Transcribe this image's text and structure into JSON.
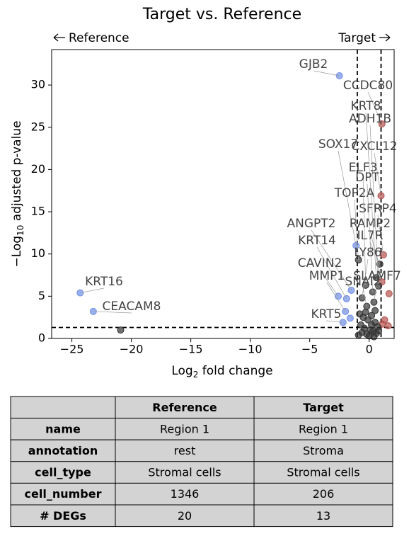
{
  "chart_data": {
    "type": "scatter",
    "title": "Target vs. Reference",
    "direction_labels": [
      "Reference",
      "Target"
    ],
    "xlabel": [
      "Log",
      "2",
      " fold change"
    ],
    "ylabel": [
      "−Log",
      "10",
      " adjusted p-value"
    ],
    "xlim": [
      -26.7,
      2.1
    ],
    "ylim": [
      0,
      34.2
    ],
    "xticks": [
      {
        "value": -25,
        "label": "−25"
      },
      {
        "value": -20,
        "label": "−20"
      },
      {
        "value": -15,
        "label": "−15"
      },
      {
        "value": -10,
        "label": "−10"
      },
      {
        "value": -5,
        "label": "−5"
      },
      0
    ],
    "yticks": [
      0,
      5,
      10,
      15,
      20,
      25,
      30
    ],
    "thresholds": {
      "x": [
        -1,
        1
      ],
      "y": 1.3
    },
    "series": [
      {
        "color": "#6f8fe8",
        "x": [
          -24.3,
          -23.2,
          -2.5,
          -1.1,
          -1.5,
          -1.9,
          -2.6,
          -2.0,
          -2.2,
          -1.6
        ],
        "values": [
          5.4,
          3.2,
          31.1,
          11.0,
          5.7,
          4.7,
          5.0,
          3.2,
          1.9,
          2.4
        ],
        "labels": [
          "KRT16",
          "CEACAM8",
          "GJB2",
          "SOX17",
          "ANGPT2",
          "KRT14",
          "CAVIN2",
          "MMP1",
          "KRT5",
          null
        ]
      },
      {
        "color": "#b5524f",
        "x": [
          1.07,
          1.0,
          1.2,
          1.07,
          1.67,
          1.3,
          1.6,
          1.1
        ],
        "values": [
          25.4,
          16.9,
          9.9,
          6.7,
          5.3,
          2.2,
          1.5,
          1.7
        ],
        "labels": [
          "CCDC80",
          "CXCL12",
          "SFRP4",
          "RAMP2",
          null,
          null,
          null,
          null
        ]
      },
      {
        "color": "#333333",
        "x": [
          -20.9,
          -0.9,
          0.9,
          0.6,
          0.8,
          -0.3,
          0.3,
          -0.6,
          0.4,
          -0.2,
          -0.8,
          -0.5,
          -0.1,
          0.2,
          0.5,
          0.7,
          -0.7,
          -0.4,
          0.1,
          0.3,
          0.6,
          -0.2,
          0.0,
          0.4,
          -0.6,
          0.8,
          -0.9,
          0.2,
          -0.3,
          0.5
        ],
        "values": [
          1.0,
          9.3,
          8.8,
          7.2,
          6.2,
          6.3,
          5.5,
          4.8,
          4.3,
          3.8,
          2.9,
          2.5,
          2.2,
          2.7,
          1.9,
          1.4,
          1.6,
          1.2,
          1.0,
          0.8,
          0.6,
          0.5,
          0.3,
          0.2,
          0.7,
          0.9,
          0.4,
          1.6,
          3.1,
          3.3
        ],
        "labels": [
          null,
          "TOP2A",
          "IL7R",
          "KRT8",
          "ADH1B",
          "ELF3",
          "DPT",
          "LY86",
          "SLAMF7",
          "SNAI2",
          null,
          null,
          null,
          null,
          null,
          null,
          null,
          null,
          null,
          null,
          null,
          null,
          null,
          null,
          null,
          null,
          null,
          null,
          null,
          null
        ]
      }
    ]
  },
  "table": {
    "header": [
      "Reference",
      "Target"
    ],
    "rows": [
      [
        "name",
        "Region 1",
        "Region 1"
      ],
      [
        "annotation",
        "rest",
        "Stroma"
      ],
      [
        "cell_type",
        "Stromal cells",
        "Stromal cells"
      ],
      [
        "cell_number",
        1346,
        206
      ],
      [
        "# DEGs",
        20,
        13
      ]
    ]
  }
}
